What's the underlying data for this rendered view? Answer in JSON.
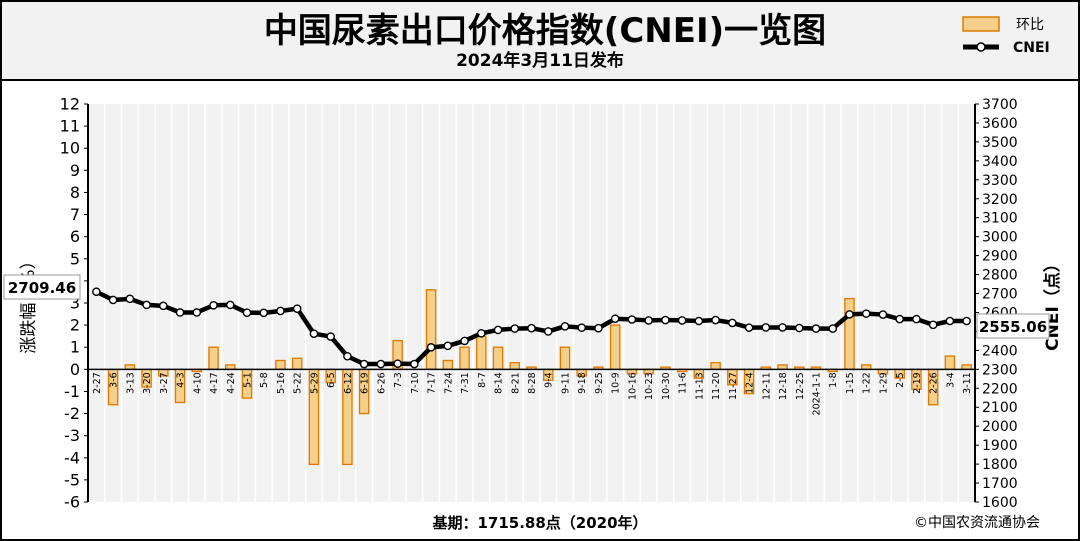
{
  "header": {
    "title": "中国尿素出口价格指数(CNEI)一览图",
    "subtitle": "2024年3月11日发布"
  },
  "legend": {
    "bar_label": "环比",
    "line_label": "CNEI"
  },
  "footer": {
    "base_note": "基期：1715.88点（2020年）",
    "copyright": "©中国农资流通协会"
  },
  "callouts": {
    "first_value": "2709.46",
    "last_value": "2555.06"
  },
  "colors": {
    "bar_fill": "#f5d08a",
    "bar_edge": "#e07800",
    "line": "#000000",
    "marker_fill": "#ffffff",
    "plot_bg": "#f2f2f2",
    "header_bg": "#f2f2f2"
  },
  "chart_data": {
    "type": "bar+line",
    "xlabel": "",
    "ylabel_left": "涨跌幅（%）",
    "ylabel_right": "CNEI（点）",
    "ylim_left": [
      -6,
      12
    ],
    "ylim_right": [
      1600,
      3700
    ],
    "yticks_left": [
      12,
      11,
      10,
      9,
      8,
      7,
      6,
      5,
      4,
      3,
      2,
      1,
      0,
      -1,
      -2,
      -3,
      -4,
      -5,
      -6
    ],
    "yticks_right": [
      3700,
      3600,
      3500,
      3400,
      3300,
      3200,
      3100,
      3000,
      2900,
      2800,
      2700,
      2600,
      2500,
      2400,
      2300,
      2200,
      2100,
      2000,
      1900,
      1800,
      1700,
      1600
    ],
    "grid": "vertical",
    "categories": [
      "2-27",
      "3-6",
      "3-13",
      "3-20",
      "3-27",
      "4-3",
      "4-10",
      "4-17",
      "4-24",
      "5-1",
      "5-8",
      "5-16",
      "5-22",
      "5-29",
      "6-5",
      "6-12",
      "6-19",
      "6-26",
      "7-3",
      "7-10",
      "7-17",
      "7-24",
      "7-31",
      "8-7",
      "8-14",
      "8-21",
      "8-28",
      "9-4",
      "9-11",
      "9-18",
      "9-25",
      "10-9",
      "10-16",
      "10-23",
      "10-30",
      "11-6",
      "11-13",
      "11-20",
      "11-27",
      "12-4",
      "12-11",
      "12-18",
      "12-25",
      "2024-1-1",
      "1-8",
      "1-15",
      "1-22",
      "1-29",
      "2-5",
      "2-19",
      "2-26",
      "3-4",
      "3-11"
    ],
    "series": [
      {
        "name": "环比",
        "kind": "bar",
        "axis": "left",
        "values": [
          0,
          -1.6,
          0.2,
          -0.8,
          -0.3,
          -1.5,
          -0.1,
          1.0,
          0.2,
          -1.3,
          0,
          0.4,
          0.5,
          -4.3,
          -0.6,
          -4.3,
          -2.0,
          0,
          1.3,
          0,
          3.6,
          0.4,
          1.0,
          1.5,
          1.0,
          0.3,
          0.1,
          -0.5,
          1.0,
          -0.3,
          0.1,
          2.0,
          -0.2,
          -0.2,
          0.1,
          -0.1,
          -0.4,
          0.3,
          -0.7,
          -1.1,
          0.1,
          0.2,
          0.1,
          0.1,
          -0.1,
          3.2,
          0.2,
          -0.2,
          -0.4,
          -0.9,
          -1.6,
          0.6,
          0.2
        ]
      },
      {
        "name": "CNEI",
        "kind": "line",
        "axis": "right",
        "values": [
          2709.46,
          2666,
          2672,
          2640,
          2635,
          2600,
          2600,
          2638,
          2640,
          2599,
          2598,
          2608,
          2620,
          2488,
          2473,
          2369,
          2328,
          2328,
          2330,
          2328,
          2416,
          2424,
          2450,
          2490,
          2508,
          2515,
          2517,
          2500,
          2527,
          2520,
          2517,
          2567,
          2563,
          2558,
          2560,
          2558,
          2555,
          2560,
          2545,
          2520,
          2521,
          2521,
          2518,
          2515,
          2515,
          2590,
          2594,
          2589,
          2565,
          2565,
          2535,
          2555,
          2555.06
        ]
      }
    ]
  }
}
